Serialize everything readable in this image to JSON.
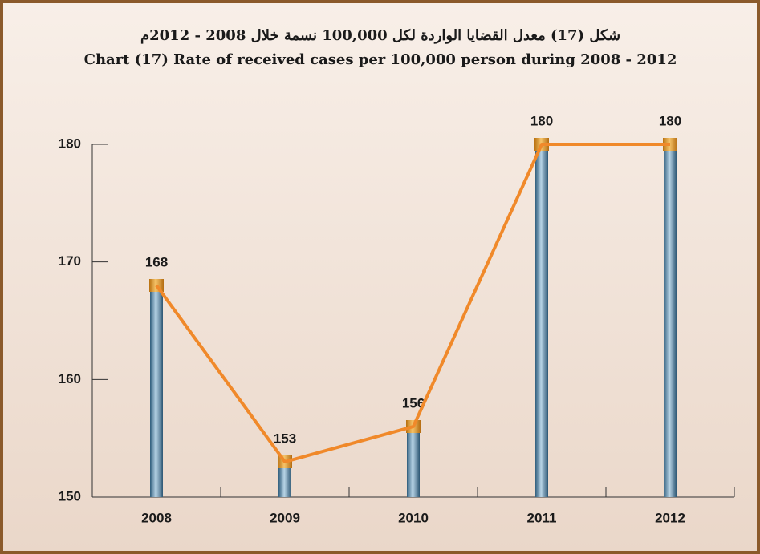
{
  "chart_data": {
    "type": "bar_line",
    "title_ar": "شكل (17) معدل القضايا الواردة لكل 100,000 نسمة خلال 2008 - 2012م",
    "title": "Chart (17) Rate of received cases per 100,000 person during  2008 - 2012",
    "categories": [
      "2008",
      "2009",
      "2010",
      "2011",
      "2012"
    ],
    "values": [
      168,
      153,
      156,
      180,
      180
    ],
    "color": "#4f86a8",
    "cap_color": "#e8961f",
    "line_color": "#f0892a",
    "ylim": [
      150,
      180
    ],
    "yticks": [
      150,
      160,
      170,
      180
    ]
  }
}
